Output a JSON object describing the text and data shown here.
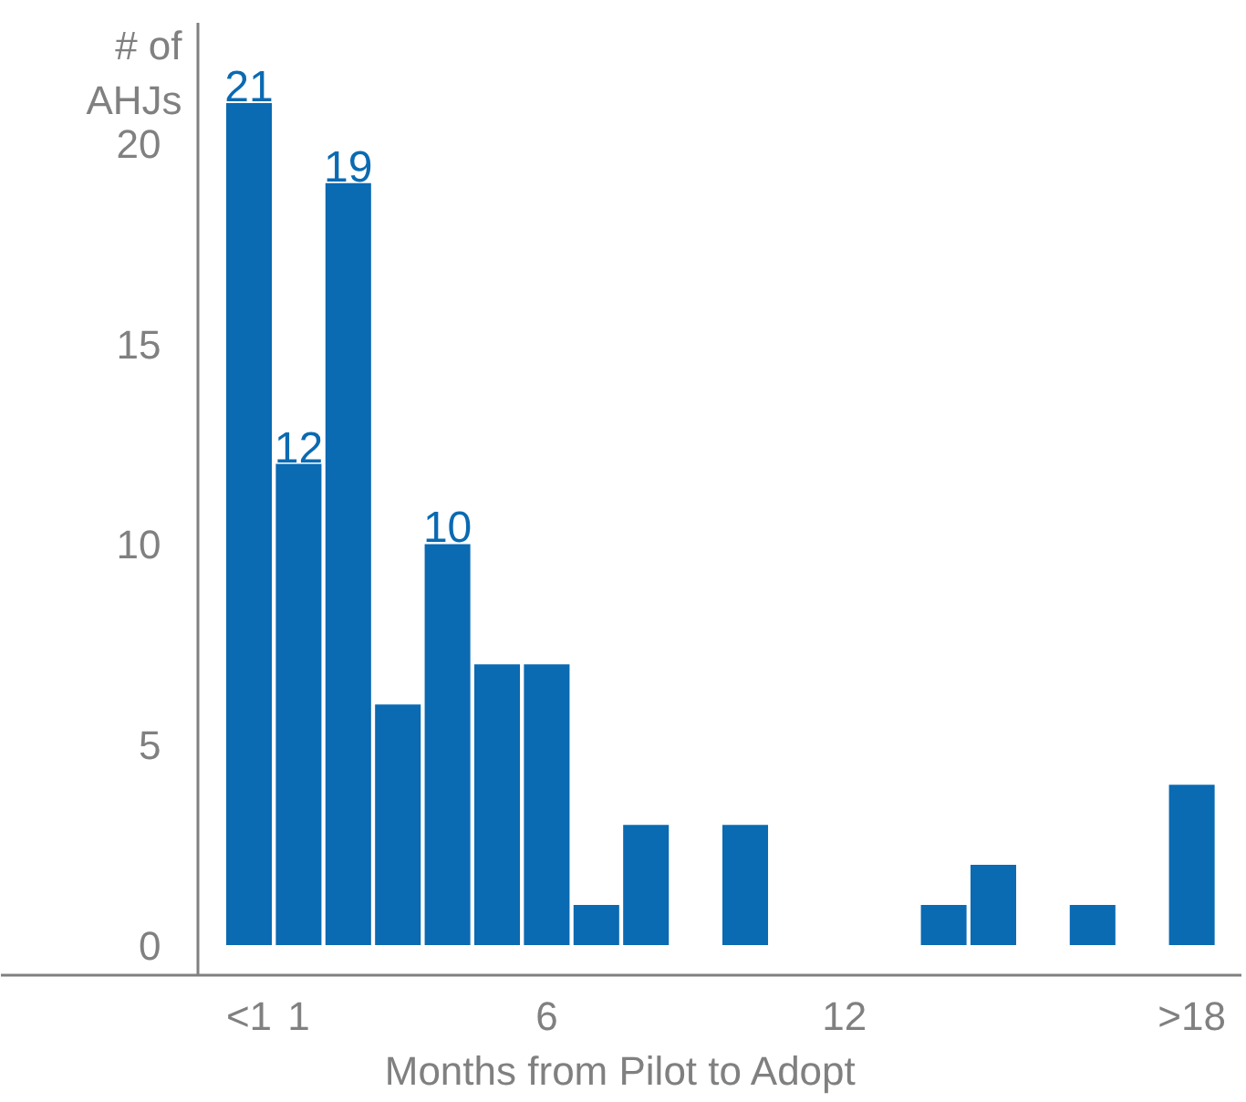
{
  "chart_data": {
    "type": "bar",
    "xlabel": "Months from Pilot to Adopt",
    "ylabel": "# of\nAHJs",
    "categories": [
      "<1",
      "1",
      null,
      null,
      null,
      null,
      "6",
      null,
      null,
      null,
      null,
      null,
      "12",
      null,
      null,
      null,
      null,
      null,
      null,
      ">18"
    ],
    "values": [
      21,
      12,
      19,
      6,
      10,
      7,
      7,
      1,
      3,
      0,
      3,
      0,
      0,
      0,
      1,
      2,
      0,
      1,
      0,
      4
    ],
    "value_labels": [
      "21",
      "12",
      "19",
      null,
      "10",
      null,
      null,
      null,
      null,
      null,
      null,
      null,
      null,
      null,
      null,
      null,
      null,
      null,
      null,
      null
    ],
    "color": "#0a6ab2",
    "ylim": [
      -0.75,
      23
    ],
    "yticks": [
      0,
      5,
      10,
      15,
      20
    ],
    "grid": false
  }
}
